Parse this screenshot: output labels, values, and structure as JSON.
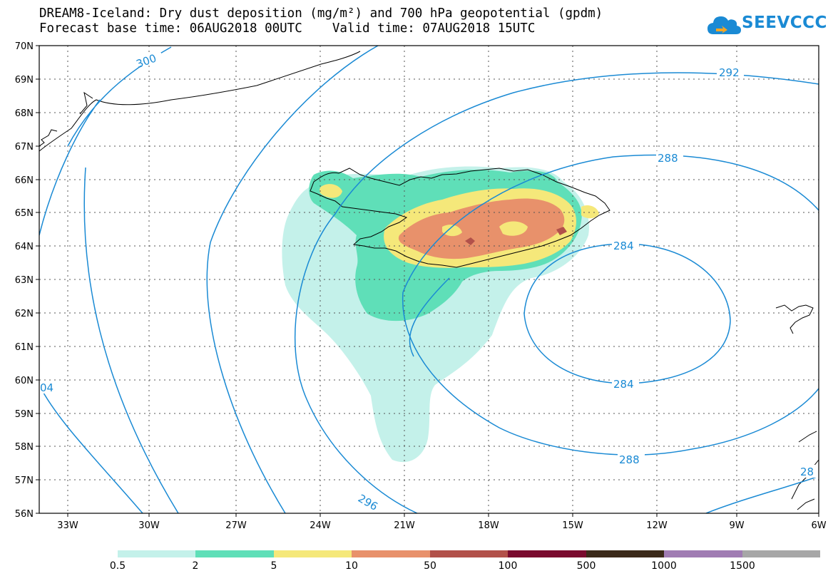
{
  "header": {
    "title_line1": "DREAM8-Iceland: Dry dust deposition (mg/m²) and 700 hPa geopotential (gpdm)",
    "title_line2": "Forecast base time: 06AUG2018 00UTC    Valid time: 07AUG2018 15UTC",
    "logo_text": "SEEVCCC"
  },
  "map": {
    "lat_labels": [
      "70N",
      "69N",
      "68N",
      "67N",
      "66N",
      "65N",
      "64N",
      "63N",
      "62N",
      "61N",
      "60N",
      "59N",
      "58N",
      "57N",
      "56N"
    ],
    "lon_labels": [
      "33W",
      "30W",
      "27W",
      "24W",
      "21W",
      "18W",
      "15W",
      "12W",
      "9W",
      "6W"
    ],
    "contour_labels": [
      "300",
      "292",
      "288",
      "284",
      "284",
      "288",
      "296",
      "04",
      "28"
    ],
    "contour_color": "#1a8ad4"
  },
  "legend": {
    "labels": [
      "0.5",
      "2",
      "5",
      "10",
      "50",
      "100",
      "500",
      "1000",
      "1500"
    ],
    "colors": [
      "#c4f1ea",
      "#5fdfb8",
      "#f5e87a",
      "#e8916b",
      "#b2514a",
      "#7a0a2e",
      "#3b2a1a",
      "#a07cb3",
      "#a7a7a7"
    ]
  }
}
